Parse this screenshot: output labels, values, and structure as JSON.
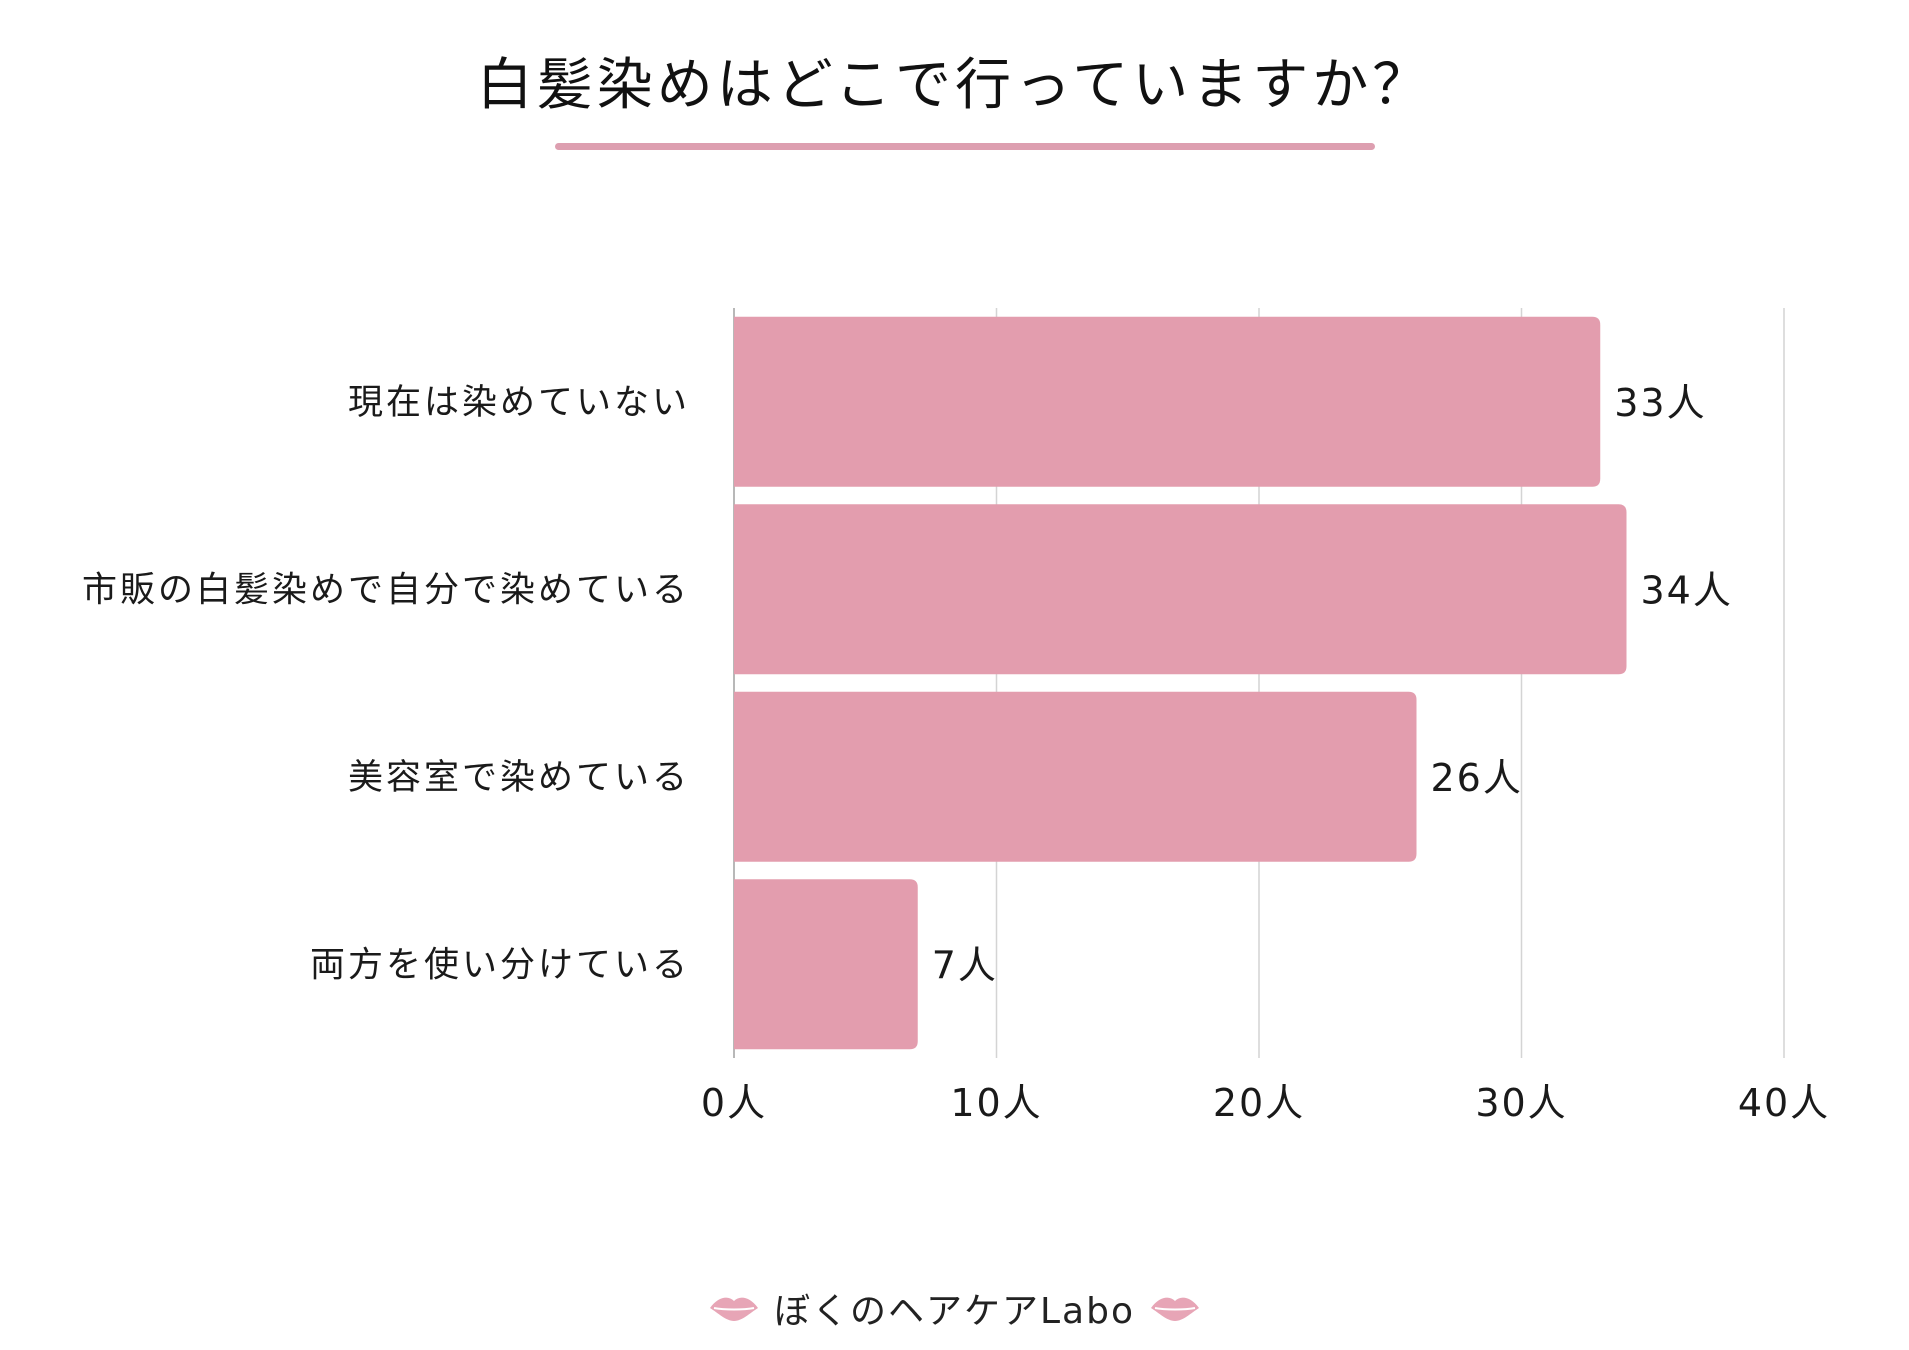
{
  "colors": {
    "bar": "#e39dae",
    "underline": "#dd9fb0",
    "grid": "#d4d4d4",
    "axis": "#b8b8b8",
    "lips": "#e7a5b6"
  },
  "footer": {
    "brand": "ぼくのヘアケアLabo",
    "icon_left": "lips-icon",
    "icon_right": "lips-icon"
  },
  "chart_data": {
    "type": "bar",
    "orientation": "horizontal",
    "title": "白髪染めはどこで行っていますか？",
    "categories": [
      "現在は染めていない",
      "市販の白髪染めで自分で染めている",
      "美容室で染めている",
      "両方を使い分けている"
    ],
    "values": [
      33,
      34,
      26,
      7
    ],
    "data_labels": [
      "33人",
      "34人",
      "26人",
      "7人"
    ],
    "xlim": [
      0,
      40
    ],
    "x_ticks": [
      0,
      10,
      20,
      30,
      40
    ],
    "x_tick_labels": [
      "0人",
      "10人",
      "20人",
      "30人",
      "40人"
    ],
    "grid": true,
    "legend": "none"
  }
}
